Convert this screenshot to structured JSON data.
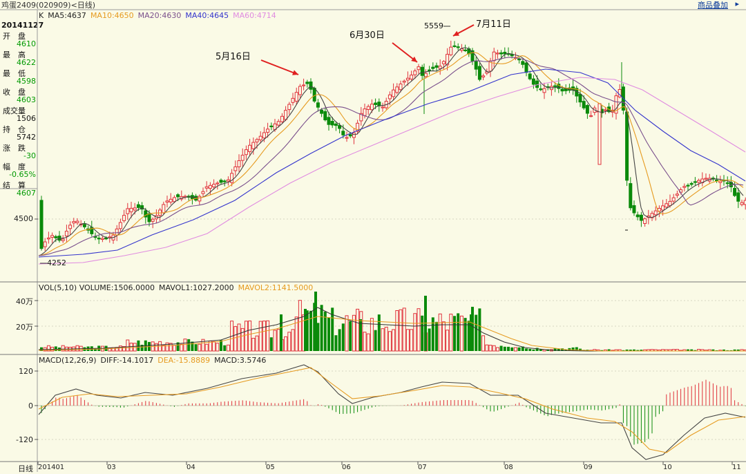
{
  "window": {
    "title": "鸡蛋2409(020909)<日线)",
    "overlay_link": "商品叠加",
    "overlay_arrow": "▸"
  },
  "sidebar": {
    "date": "20141127",
    "rows": [
      {
        "label": "开　盘",
        "value": "4610",
        "color": "#009900"
      },
      {
        "label": "最　高",
        "value": "4622",
        "color": "#009900"
      },
      {
        "label": "最　低",
        "value": "4598",
        "color": "#009900"
      },
      {
        "label": "收　盘",
        "value": "4603",
        "color": "#009900"
      },
      {
        "label": "成交量",
        "value": "1506",
        "color": "#111111"
      },
      {
        "label": "持　仓",
        "value": "5742",
        "color": "#111111"
      },
      {
        "label": "涨　跌",
        "value": "-30",
        "color": "#009900"
      },
      {
        "label": "幅　度",
        "value": "-0.65%",
        "color": "#009900"
      },
      {
        "label": "结　算",
        "value": "4607",
        "color": "#009900"
      }
    ]
  },
  "main_legend": {
    "items": [
      {
        "text": "K",
        "color": "#222222"
      },
      {
        "text": "MA5:4637",
        "color": "#222222"
      },
      {
        "text": "MA10:4650",
        "color": "#E69A1F"
      },
      {
        "text": "MA20:4630",
        "color": "#7A4F8C"
      },
      {
        "text": "MA40:4645",
        "color": "#3333CC"
      },
      {
        "text": "MA60:4714",
        "color": "#E08BE0"
      }
    ]
  },
  "volume_legend": {
    "items": [
      {
        "text": "VOL(5,10) VOLUME:1506.0000",
        "color": "#222222"
      },
      {
        "text": "MAVOL1:1027.2000",
        "color": "#222222"
      },
      {
        "text": "MAVOL2:1141.5000",
        "color": "#E69A1F"
      }
    ]
  },
  "macd_legend": {
    "items": [
      {
        "text": "MACD(12,26,9)",
        "color": "#222222"
      },
      {
        "text": "DIFF:-14.1017",
        "color": "#222222"
      },
      {
        "text": "DEA:-15.8889",
        "color": "#E69A1F"
      },
      {
        "text": "MACD:3.5746",
        "color": "#222222"
      }
    ]
  },
  "annotations": {
    "may16": "5月16日",
    "jun30": "6月30日",
    "jul11": "7月11日",
    "high_value": "5559",
    "low_value": "4252"
  },
  "price_axis": {
    "label_4500": "4500"
  },
  "volume_axis": {
    "label_40w": "40万",
    "label_20w": "20万"
  },
  "macd_axis": {
    "label_120": "120",
    "label_0": "0",
    "label_m120": "-120"
  },
  "x_axis": {
    "period_label": "日线",
    "labels": [
      "201401",
      "03",
      "04",
      "05",
      "06",
      "07",
      "08",
      "09",
      "10",
      "11"
    ]
  },
  "colors": {
    "background": "#FAFAE6",
    "up": "#E0303A",
    "down": "#0A8A0A",
    "grid": "#C8C8B4"
  },
  "chart_data": {
    "type": "candlestick",
    "instrument": "鸡蛋2409(020909)",
    "period": "日线",
    "x_range": [
      "2014-01",
      "2014-11-27"
    ],
    "price_key_points": [
      {
        "date": "start",
        "value": 4252,
        "label": "low"
      },
      {
        "date": "5月16日",
        "value": 5180
      },
      {
        "date": "6月30日",
        "value": 5380
      },
      {
        "date": "7月11日",
        "value": 5559,
        "label": "high"
      },
      {
        "date": "2014-11-27",
        "open": 4610,
        "high": 4622,
        "low": 4598,
        "close": 4603
      }
    ],
    "moving_averages": {
      "MA5": 4637,
      "MA10": 4650,
      "MA20": 4630,
      "MA40": 4645,
      "MA60": 4714
    },
    "volume": {
      "VOLUME": 1506.0,
      "MAVOL1": 1027.2,
      "MAVOL2": 1141.5,
      "axis_ticks": [
        "20万",
        "40万"
      ]
    },
    "macd": {
      "DIFF": -14.1017,
      "DEA": -15.8889,
      "MACD": 3.5746,
      "axis_ticks": [
        120,
        0,
        -120
      ]
    },
    "grid": false
  }
}
